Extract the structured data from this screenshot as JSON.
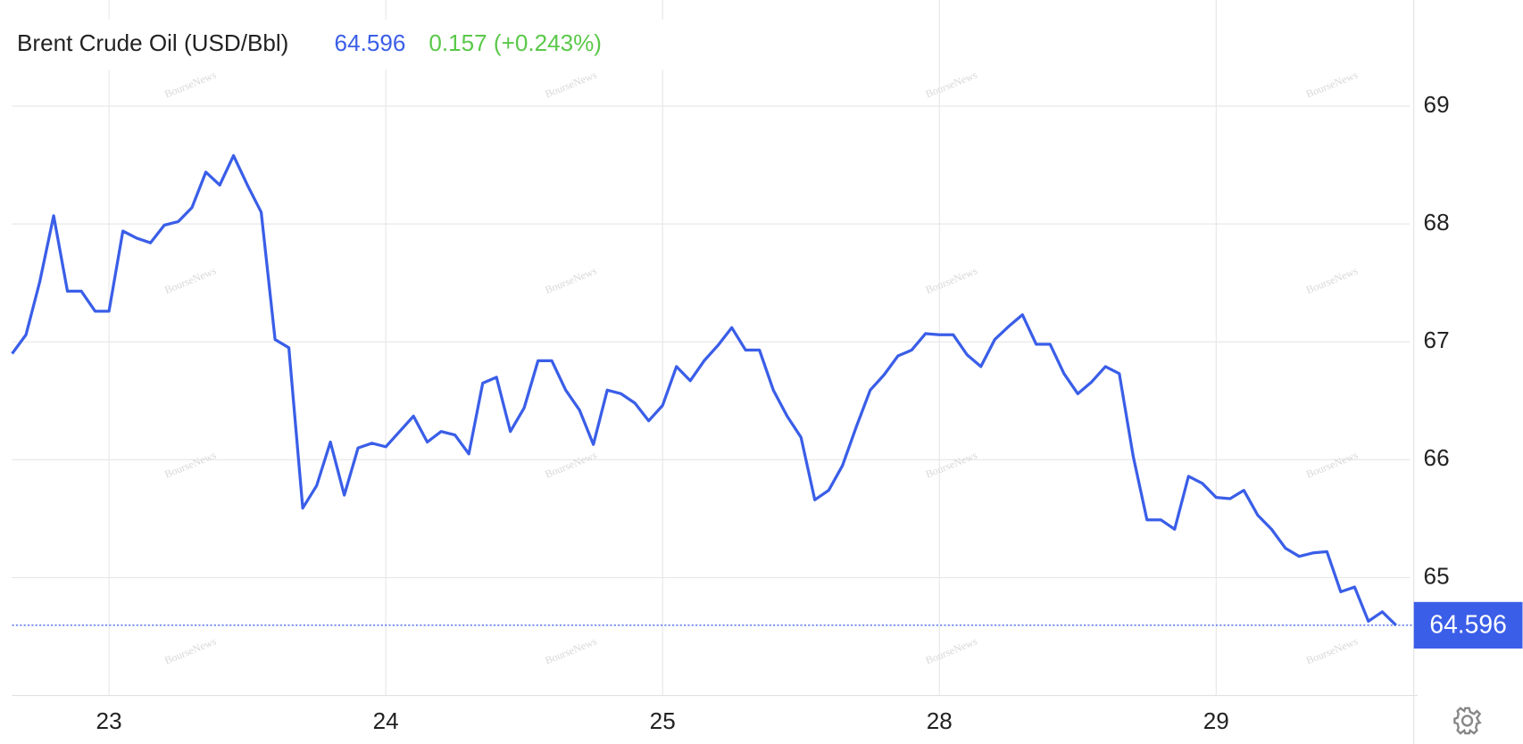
{
  "chart_data": {
    "type": "line",
    "title": "Brent Crude Oil (USD/Bbl)",
    "last": 64.596,
    "change": "0.157 (+0.243%)",
    "watermark": "BourseNews",
    "x": [
      0.65,
      0.7,
      0.75,
      0.8,
      0.85,
      0.9,
      0.95,
      1.0,
      1.05,
      1.1,
      1.15,
      1.2,
      1.25,
      1.3,
      1.35,
      1.4,
      1.45,
      1.5,
      1.55,
      1.6,
      1.65,
      1.7,
      1.75,
      1.8,
      1.85,
      1.9,
      1.95,
      2.0,
      2.05,
      2.1,
      2.15,
      2.2,
      2.25,
      2.3,
      2.35,
      2.4,
      2.45,
      2.5,
      2.55,
      2.6,
      2.65,
      2.7,
      2.75,
      2.8,
      2.85,
      2.9,
      2.95,
      3.0,
      3.05,
      3.1,
      3.15,
      3.2,
      3.25,
      3.3,
      3.35,
      3.4,
      3.45,
      3.5,
      3.55,
      3.6,
      3.65,
      3.7,
      3.75,
      3.8,
      3.85,
      3.9,
      3.95,
      4.0,
      4.05,
      4.1,
      4.15,
      4.2,
      4.25,
      4.3,
      4.35,
      4.4,
      4.45,
      4.5,
      4.55,
      4.6,
      4.65,
      4.7,
      4.75,
      4.8,
      4.85,
      4.9,
      4.95,
      5.0,
      5.05,
      5.1,
      5.15,
      5.2,
      5.25,
      5.3,
      5.35,
      5.4,
      5.45,
      5.5,
      5.55,
      5.6,
      5.65
    ],
    "series": [
      {
        "name": "Brent Crude Oil (USD/Bbl)",
        "color": "#3a5ee8",
        "values": [
          66.9,
          67.06,
          67.51,
          68.07,
          67.43,
          67.43,
          67.26,
          67.26,
          67.94,
          67.88,
          67.84,
          67.99,
          68.02,
          68.14,
          68.44,
          68.33,
          68.58,
          68.33,
          68.1,
          67.02,
          66.95,
          65.59,
          65.78,
          66.15,
          65.7,
          66.1,
          66.14,
          66.11,
          66.24,
          66.37,
          66.15,
          66.24,
          66.21,
          66.05,
          66.65,
          66.7,
          66.24,
          66.44,
          66.84,
          66.84,
          66.59,
          66.42,
          66.13,
          66.59,
          66.56,
          66.48,
          66.33,
          66.46,
          66.79,
          66.67,
          66.84,
          66.97,
          67.12,
          66.93,
          66.93,
          66.59,
          66.37,
          66.19,
          65.66,
          65.74,
          65.95,
          66.28,
          66.59,
          66.72,
          66.88,
          66.93,
          67.07,
          67.06,
          67.06,
          66.89,
          66.79,
          67.02,
          67.13,
          67.23,
          66.98,
          66.98,
          66.73,
          66.56,
          66.66,
          66.79,
          66.73,
          66.03,
          65.49,
          65.49,
          65.41,
          65.86,
          65.8,
          65.68,
          65.67,
          65.74,
          65.53,
          65.41,
          65.25,
          65.18,
          65.21,
          65.22,
          64.88,
          64.92,
          64.63,
          64.71,
          64.596
        ]
      }
    ],
    "xlim": [
      0.65,
      5.7
    ],
    "xticks": [
      {
        "value": 1,
        "label": "23"
      },
      {
        "value": 2,
        "label": "24"
      },
      {
        "value": 3,
        "label": "25"
      },
      {
        "value": 4,
        "label": "28"
      },
      {
        "value": 5,
        "label": "29"
      }
    ],
    "ylim": [
      64,
      69.9
    ],
    "yticks": [
      65,
      66,
      67,
      68,
      69
    ],
    "grid": true
  }
}
